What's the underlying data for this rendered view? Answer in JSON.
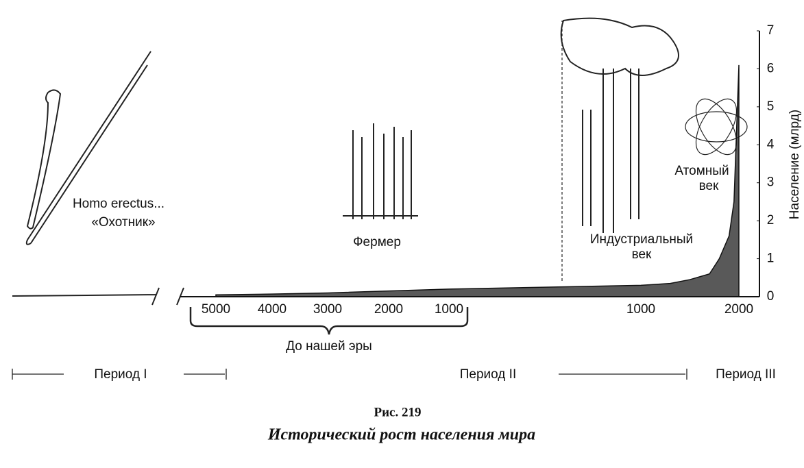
{
  "chart_data": {
    "type": "area",
    "ylabel": "Население (млрд)",
    "x": [
      -5000,
      -4000,
      -3000,
      -2000,
      -1000,
      0,
      1000,
      1300,
      1500,
      1700,
      1800,
      1900,
      1950,
      2000
    ],
    "values": [
      0.05,
      0.07,
      0.1,
      0.15,
      0.2,
      0.25,
      0.3,
      0.35,
      0.45,
      0.6,
      1,
      1.6,
      2.5,
      6.1
    ],
    "color": "#222222",
    "ylim": [
      0,
      7
    ],
    "yticks": [
      0,
      1,
      2,
      3,
      4,
      5,
      6,
      7
    ],
    "xticks": [
      {
        "value": -5000,
        "label": "5000"
      },
      {
        "value": -4000,
        "label": "4000"
      },
      {
        "value": -3000,
        "label": "3000"
      },
      {
        "value": -2000,
        "label": "2000"
      },
      {
        "value": -1000,
        "label": "1000"
      },
      1000,
      2000
    ],
    "x_group_label": "До нашей эры",
    "annotations": [
      "Homo erectus...",
      "«Охотник»",
      "Фермер",
      "Индустриальный",
      "век",
      "Атомный",
      "век"
    ],
    "periods": [
      "Период I",
      "Период II",
      "Период III"
    ],
    "caption": {
      "number": "Рис. 219",
      "title": "Исторический рост населения мира"
    }
  }
}
